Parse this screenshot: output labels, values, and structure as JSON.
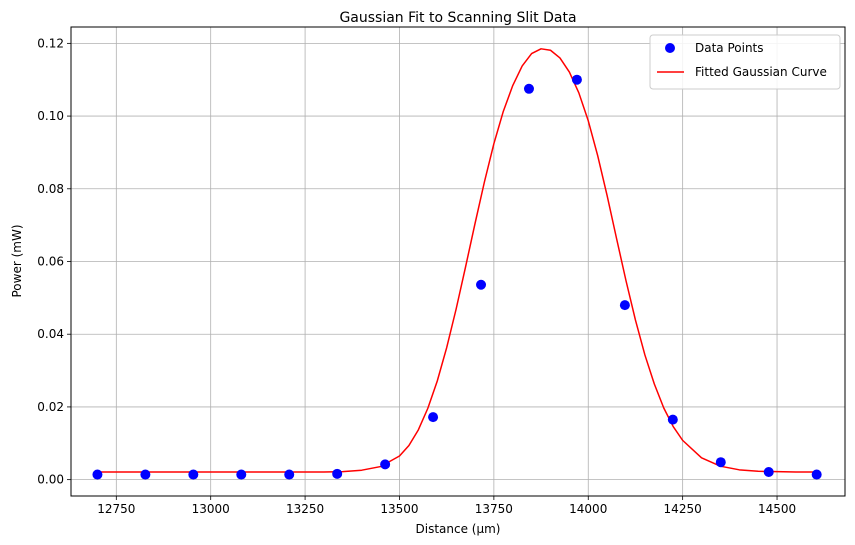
{
  "chart_data": {
    "type": "scatter",
    "title": "Gaussian Fit to Scanning Slit Data",
    "xlabel": "Distance (µm)",
    "ylabel": "Power (mW)",
    "xlim": [
      12630,
      14680
    ],
    "ylim": [
      -0.0045,
      0.1245
    ],
    "xticks": [
      12750,
      13000,
      13250,
      13500,
      13750,
      14000,
      14250,
      14500
    ],
    "yticks": [
      0.0,
      0.02,
      0.04,
      0.06,
      0.08,
      0.1,
      0.12
    ],
    "ytick_labels": [
      "0.00",
      "0.02",
      "0.04",
      "0.06",
      "0.08",
      "0.10",
      "0.12"
    ],
    "grid": true,
    "legend_position": "top-right",
    "series": [
      {
        "name": "Data Points",
        "kind": "scatter",
        "color": "#0000ff",
        "x": [
          12700,
          12827,
          12954,
          13081,
          13208,
          13335,
          13462,
          13589,
          13716,
          13843,
          13970,
          14097,
          14224,
          14351,
          14478,
          14605
        ],
        "y": [
          0.0014,
          0.0014,
          0.0014,
          0.0014,
          0.0014,
          0.0016,
          0.0042,
          0.0172,
          0.0536,
          0.1075,
          0.11,
          0.048,
          0.0165,
          0.0048,
          0.0021,
          0.0014
        ]
      },
      {
        "name": "Fitted Gaussian Curve",
        "kind": "line",
        "color": "#ff0000",
        "x": [
          12700,
          12750,
          12800,
          12850,
          12900,
          12950,
          13000,
          13050,
          13100,
          13150,
          13200,
          13250,
          13300,
          13350,
          13400,
          13450,
          13500,
          13525,
          13550,
          13575,
          13600,
          13625,
          13650,
          13675,
          13700,
          13725,
          13750,
          13775,
          13800,
          13825,
          13850,
          13875,
          13900,
          13925,
          13950,
          13975,
          14000,
          14025,
          14050,
          14075,
          14100,
          14125,
          14150,
          14175,
          14200,
          14225,
          14250,
          14300,
          14350,
          14400,
          14450,
          14500,
          14550,
          14605
        ],
        "y": [
          0.0021,
          0.0021,
          0.0021,
          0.0021,
          0.0021,
          0.0021,
          0.0021,
          0.0021,
          0.0021,
          0.0021,
          0.0021,
          0.0021,
          0.0021,
          0.0022,
          0.0026,
          0.0036,
          0.0065,
          0.0094,
          0.0137,
          0.0196,
          0.0271,
          0.0363,
          0.0469,
          0.0585,
          0.0704,
          0.0819,
          0.0924,
          0.1013,
          0.1084,
          0.1138,
          0.1172,
          0.1185,
          0.1181,
          0.116,
          0.1121,
          0.1064,
          0.0987,
          0.0891,
          0.0781,
          0.0663,
          0.0547,
          0.0439,
          0.0343,
          0.0263,
          0.0197,
          0.0146,
          0.0108,
          0.006,
          0.0037,
          0.0027,
          0.0023,
          0.0022,
          0.0021,
          0.0021
        ]
      }
    ]
  }
}
